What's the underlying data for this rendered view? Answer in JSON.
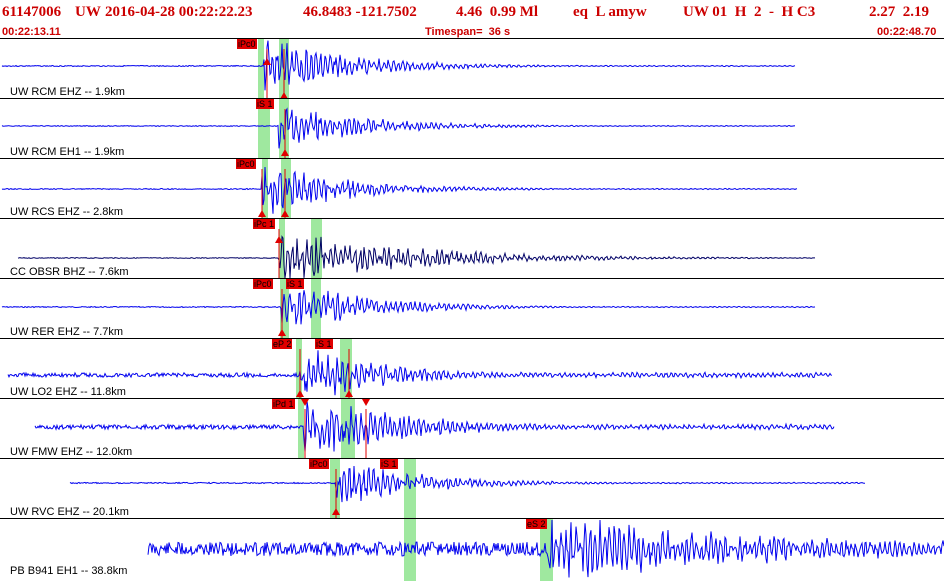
{
  "header": {
    "event_id": "61147006",
    "network": "UW",
    "datetime": "2016-04-28 00:22:22.23",
    "latlon": "46.8483 -121.7502",
    "depth_mag": "4.46  0.99 Ml",
    "type": "eq  L amyw",
    "quality": "UW 01  H  2  -  H C3",
    "stats": "2.27  2.19",
    "start_time": "00:22:13.11",
    "timespan": "Timespan=  36 s",
    "end_time": "00:22:48.70"
  },
  "colors": {
    "header_text": "#cc0000",
    "trace": "#0000ee",
    "trace_dark": "#000066",
    "pick_flag": "#e00000",
    "pick_highlight": "#9fe89f"
  },
  "channels": [
    {
      "label": "UW RCM EHZ -- 1.9km",
      "picks": [
        {
          "text": "iPc0"
        }
      ]
    },
    {
      "label": "UW RCM EH1 -- 1.9km",
      "picks": [
        {
          "text": "iS 1"
        }
      ]
    },
    {
      "label": "UW RCS EHZ -- 2.8km",
      "picks": [
        {
          "text": "iPc0"
        }
      ]
    },
    {
      "label": "CC OBSR BHZ -- 7.6km",
      "picks": [
        {
          "text": "iPc 1"
        }
      ]
    },
    {
      "label": "UW RER EHZ -- 7.7km",
      "picks": [
        {
          "text": "iPc0"
        },
        {
          "text": "iS 1"
        }
      ]
    },
    {
      "label": "UW LO2 EHZ -- 11.8km",
      "picks": [
        {
          "text": "eP 2"
        },
        {
          "text": "iS 1"
        }
      ]
    },
    {
      "label": "UW FMW EHZ -- 12.0km",
      "picks": [
        {
          "text": "iPd 1"
        }
      ]
    },
    {
      "label": "UW RVC EHZ -- 20.1km",
      "picks": [
        {
          "text": "iPc0"
        },
        {
          "text": "iS 1"
        }
      ]
    },
    {
      "label": "PB B941 EH1 -- 38.8km",
      "picks": [
        {
          "text": "eS 2"
        }
      ]
    }
  ]
}
